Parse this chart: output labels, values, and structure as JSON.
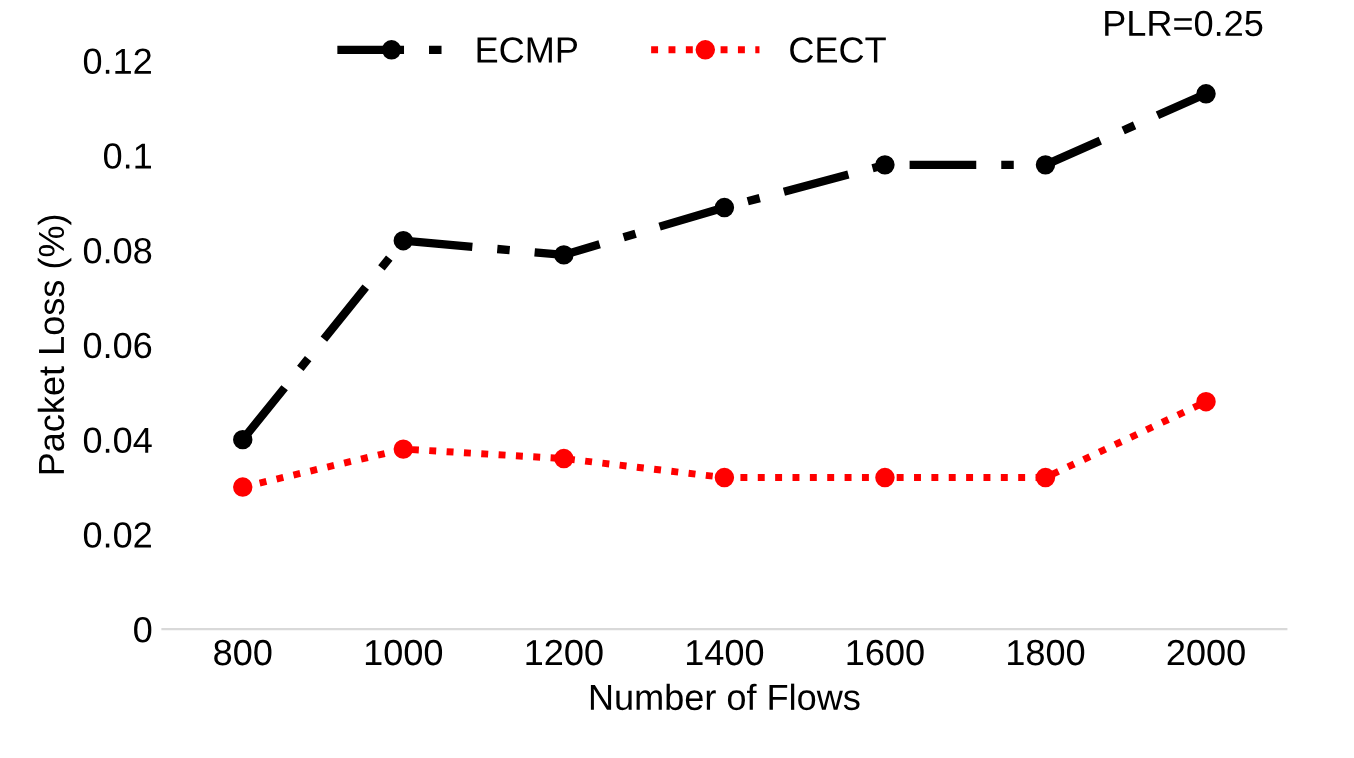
{
  "chart_data": {
    "type": "line",
    "xlabel": "Number of Flows",
    "ylabel": "Packet Loss (%)",
    "categories": [
      "800",
      "1000",
      "1200",
      "1400",
      "1600",
      "1800",
      "2000"
    ],
    "series": [
      {
        "name": "ECMP",
        "color": "#000000",
        "line_style": "dashed",
        "values": [
          0.04,
          0.082,
          0.079,
          0.089,
          0.098,
          0.098,
          0.113
        ]
      },
      {
        "name": "CECT",
        "color": "#ff0000",
        "line_style": "dotted",
        "values": [
          0.03,
          0.038,
          0.036,
          0.032,
          0.032,
          0.032,
          0.048
        ]
      }
    ],
    "marker": "circle",
    "ylim": [
      0,
      0.12
    ],
    "yticks": [
      {
        "value": 0,
        "label": "0"
      },
      0.02,
      0.04,
      0.06,
      0.08,
      {
        "value": 0.1,
        "label": "0.1"
      },
      0.12
    ],
    "grid": false,
    "legend": "top",
    "annotations": [
      "PLR=0.25"
    ]
  }
}
